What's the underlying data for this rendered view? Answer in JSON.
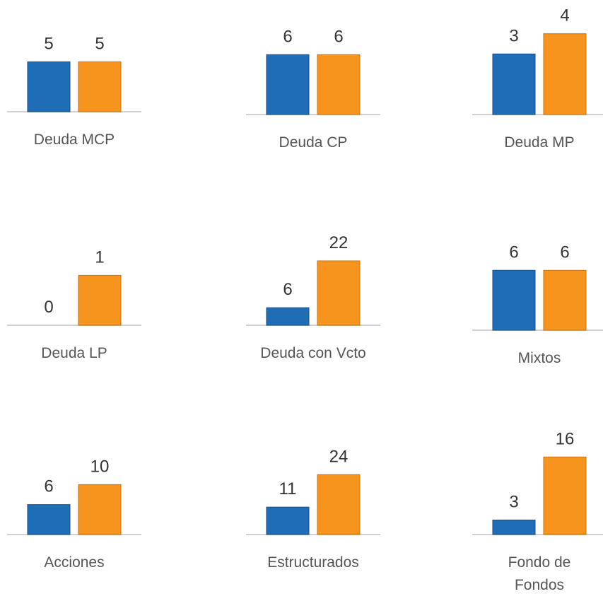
{
  "chart_data": [
    {
      "type": "bar",
      "title": "Deuda MCP",
      "values": [
        5,
        5
      ],
      "colors": [
        "#1f6db5",
        "#f7941d"
      ],
      "ylim": [
        0,
        8.5
      ]
    },
    {
      "type": "bar",
      "title": "Deuda CP",
      "values": [
        6,
        6
      ],
      "colors": [
        "#1f6db5",
        "#f7941d"
      ],
      "ylim": [
        0,
        8.5
      ]
    },
    {
      "type": "bar",
      "title": "Deuda MP",
      "values": [
        3,
        4
      ],
      "colors": [
        "#1f6db5",
        "#f7941d"
      ],
      "ylim": [
        0,
        4.2
      ]
    },
    {
      "type": "bar",
      "title": "Deuda LP",
      "values": [
        0,
        1
      ],
      "colors": [
        "#1f6db5",
        "#f7941d"
      ],
      "ylim": [
        0,
        1.7
      ]
    },
    {
      "type": "bar",
      "title": "Deuda con Vcto",
      "values": [
        6,
        22
      ],
      "colors": [
        "#1f6db5",
        "#f7941d"
      ],
      "ylim": [
        0,
        29
      ]
    },
    {
      "type": "bar",
      "title": "Mixtos",
      "values": [
        6,
        6
      ],
      "colors": [
        "#1f6db5",
        "#f7941d"
      ],
      "ylim": [
        0,
        8.5
      ]
    },
    {
      "type": "bar",
      "title": "Acciones",
      "values": [
        6,
        10
      ],
      "colors": [
        "#1f6db5",
        "#f7941d"
      ],
      "ylim": [
        0,
        17
      ]
    },
    {
      "type": "bar",
      "title": "Estructurados",
      "values": [
        11,
        24
      ],
      "colors": [
        "#1f6db5",
        "#f7941d"
      ],
      "ylim": [
        0,
        34
      ]
    },
    {
      "type": "bar",
      "title": "Fondo de Fondos",
      "values": [
        3,
        16
      ],
      "colors": [
        "#1f6db5",
        "#f7941d"
      ],
      "ylim": [
        0,
        17.5
      ]
    }
  ]
}
